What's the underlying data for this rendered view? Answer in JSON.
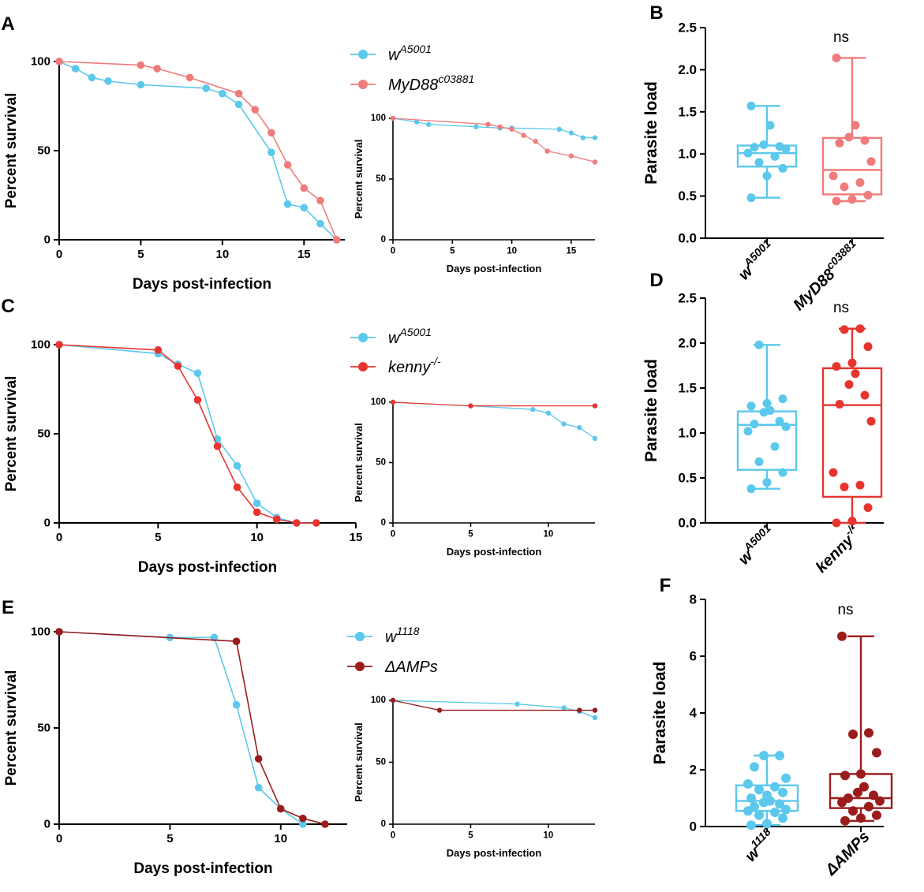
{
  "colors": {
    "light_blue": "#5bc8ec",
    "salmon": "#f07b7b",
    "red": "#e8342f",
    "dark_red": "#9b1c1c",
    "axis": "#000000"
  },
  "panel_labels": [
    "A",
    "B",
    "C",
    "D",
    "E",
    "F"
  ],
  "chart_data": [
    {
      "id": "A-main",
      "type": "line",
      "xlabel": "Days post-infection",
      "ylabel": "Percent survival",
      "xlim": [
        0,
        17.5
      ],
      "ylim": [
        0,
        100
      ],
      "xticks": [
        0,
        5,
        10,
        15
      ],
      "yticks": [
        0,
        50,
        100
      ],
      "series": [
        {
          "name": "w",
          "sup": "A5001",
          "color": "#5bc8ec",
          "x": [
            0,
            1,
            2,
            3,
            5,
            9,
            10,
            11,
            13,
            14,
            15,
            16,
            17
          ],
          "y": [
            100,
            96,
            91,
            89,
            87,
            85,
            82,
            76,
            49,
            20,
            18,
            9,
            0
          ]
        },
        {
          "name": "MyD88",
          "sup": "c03881",
          "color": "#f07b7b",
          "x": [
            0,
            5,
            6,
            8,
            11,
            12,
            13,
            14,
            15,
            16,
            17
          ],
          "y": [
            100,
            98,
            96,
            91,
            82,
            73,
            60,
            42,
            29,
            22,
            0
          ]
        }
      ]
    },
    {
      "id": "A-inset",
      "type": "line",
      "xlabel": "Days post-infection",
      "ylabel": "Percent survival",
      "xlim": [
        0,
        17
      ],
      "ylim": [
        0,
        100
      ],
      "xticks": [
        0,
        5,
        10,
        15
      ],
      "yticks": [
        0,
        50,
        100
      ],
      "series": [
        {
          "name": "w",
          "color": "#5bc8ec",
          "x": [
            0,
            2,
            3,
            7,
            9,
            10,
            14,
            15,
            16,
            17
          ],
          "y": [
            100,
            97,
            95,
            93,
            92,
            92,
            91,
            88,
            84,
            84
          ]
        },
        {
          "name": "MyD88",
          "color": "#f07b7b",
          "x": [
            0,
            8,
            9,
            10,
            11,
            12,
            13,
            15,
            17
          ],
          "y": [
            100,
            95,
            93,
            91,
            86,
            81,
            73,
            69,
            64
          ]
        }
      ]
    },
    {
      "id": "B",
      "type": "box",
      "ylabel": "Parasite load",
      "ylim": [
        0,
        2.5
      ],
      "yticks": [
        0.0,
        0.5,
        1.0,
        1.5,
        2.0,
        2.5
      ],
      "annotation": "ns",
      "groups": [
        {
          "label": "w",
          "sup": "A5001",
          "color": "#5bc8ec",
          "min": 0.48,
          "q1": 0.85,
          "median": 1.01,
          "q3": 1.1,
          "max": 1.57,
          "points": [
            0.48,
            0.74,
            0.83,
            0.9,
            0.97,
            1.01,
            1.06,
            1.08,
            1.09,
            1.11,
            1.34,
            1.57
          ]
        },
        {
          "label": "MyD88",
          "sup": "c03881",
          "color": "#f07b7b",
          "min": 0.44,
          "q1": 0.52,
          "median": 0.81,
          "q3": 1.19,
          "max": 2.14,
          "points": [
            0.44,
            0.46,
            0.51,
            0.61,
            0.66,
            0.74,
            0.91,
            1.13,
            1.16,
            1.2,
            1.34,
            2.14
          ]
        }
      ]
    },
    {
      "id": "C-main",
      "type": "line",
      "xlabel": "Days post-infection",
      "ylabel": "Percent survival",
      "xlim": [
        0,
        15
      ],
      "ylim": [
        0,
        100
      ],
      "xticks": [
        0,
        5,
        10,
        15
      ],
      "yticks": [
        0,
        50,
        100
      ],
      "series": [
        {
          "name": "w",
          "sup": "A5001",
          "color": "#5bc8ec",
          "x": [
            0,
            5,
            6,
            7,
            8,
            9,
            10,
            11,
            12,
            13
          ],
          "y": [
            100,
            95,
            89,
            84,
            47,
            32,
            11,
            3,
            0,
            0
          ]
        },
        {
          "name": "kenny",
          "sup": "-/-",
          "color": "#e8342f",
          "x": [
            0,
            5,
            6,
            7,
            8,
            9,
            10,
            11,
            12,
            13
          ],
          "y": [
            100,
            97,
            88,
            69,
            43,
            20,
            6,
            2,
            0,
            0
          ]
        }
      ]
    },
    {
      "id": "C-inset",
      "type": "line",
      "xlabel": "Days post-infection",
      "ylabel": "Percent survival",
      "xlim": [
        0,
        13
      ],
      "ylim": [
        0,
        100
      ],
      "xticks": [
        0,
        5,
        10
      ],
      "yticks": [
        0,
        50,
        100
      ],
      "series": [
        {
          "name": "w",
          "color": "#5bc8ec",
          "x": [
            0,
            5,
            9,
            10,
            11,
            12,
            13
          ],
          "y": [
            100,
            97,
            94,
            91,
            82,
            79,
            70
          ]
        },
        {
          "name": "kenny",
          "color": "#e8342f",
          "x": [
            0,
            5,
            13
          ],
          "y": [
            100,
            97,
            97
          ]
        }
      ]
    },
    {
      "id": "D",
      "type": "box",
      "ylabel": "Parasite load",
      "ylim": [
        0,
        2.5
      ],
      "yticks": [
        0.0,
        0.5,
        1.0,
        1.5,
        2.0,
        2.5
      ],
      "annotation": "ns",
      "groups": [
        {
          "label": "w",
          "sup": "A5001",
          "color": "#5bc8ec",
          "min": 0.38,
          "q1": 0.59,
          "median": 1.09,
          "q3": 1.24,
          "max": 1.98,
          "points": [
            0.38,
            0.45,
            0.56,
            0.68,
            0.85,
            1.02,
            1.07,
            1.1,
            1.13,
            1.23,
            1.25,
            1.3,
            1.33,
            1.38,
            1.98
          ]
        },
        {
          "label": "kenny",
          "sup": "-/-",
          "color": "#e8342f",
          "min": 0.0,
          "q1": 0.29,
          "median": 1.31,
          "q3": 1.72,
          "max": 2.16,
          "points": [
            0.0,
            0.02,
            0.17,
            0.4,
            0.42,
            0.56,
            1.13,
            1.32,
            1.42,
            1.54,
            1.66,
            1.74,
            1.78,
            1.96,
            2.15,
            2.16
          ]
        }
      ]
    },
    {
      "id": "E-main",
      "type": "line",
      "xlabel": "Days post-infection",
      "ylabel": "Percent survival",
      "xlim": [
        0,
        13
      ],
      "ylim": [
        0,
        100
      ],
      "xticks": [
        0,
        5,
        10
      ],
      "yticks": [
        0,
        50,
        100
      ],
      "series": [
        {
          "name": "w",
          "sup": "1118",
          "color": "#5bc8ec",
          "x": [
            0,
            5,
            7,
            8,
            9,
            10,
            11
          ],
          "y": [
            100,
            97,
            97,
            62,
            19,
            8,
            0
          ]
        },
        {
          "name": "ΔAMPs",
          "sup": "",
          "color": "#9b1c1c",
          "x": [
            0,
            8,
            9,
            10,
            11,
            12
          ],
          "y": [
            100,
            95,
            34,
            8,
            3,
            0
          ]
        }
      ]
    },
    {
      "id": "E-inset",
      "type": "line",
      "xlabel": "Days post-infection",
      "ylabel": "Percent survival",
      "xlim": [
        0,
        13
      ],
      "ylim": [
        0,
        100
      ],
      "xticks": [
        0,
        5,
        10
      ],
      "yticks": [
        0,
        50,
        100
      ],
      "series": [
        {
          "name": "w",
          "color": "#5bc8ec",
          "x": [
            0,
            8,
            11,
            12,
            13
          ],
          "y": [
            100,
            97,
            94,
            91,
            86
          ]
        },
        {
          "name": "ΔAMPs",
          "color": "#9b1c1c",
          "x": [
            0,
            3,
            12,
            13
          ],
          "y": [
            100,
            92,
            92,
            92
          ]
        }
      ]
    },
    {
      "id": "F",
      "type": "box",
      "ylabel": "Parasite load",
      "ylim": [
        0,
        8
      ],
      "yticks": [
        0,
        2,
        4,
        6,
        8
      ],
      "annotation": "ns",
      "groups": [
        {
          "label": "w",
          "sup": "1118",
          "color": "#5bc8ec",
          "min": 0.05,
          "q1": 0.55,
          "median": 0.9,
          "q3": 1.45,
          "max": 2.5,
          "points": [
            0.05,
            0.1,
            0.3,
            0.4,
            0.5,
            0.55,
            0.6,
            0.7,
            0.8,
            0.85,
            0.9,
            1.0,
            1.1,
            1.2,
            1.3,
            1.4,
            1.5,
            1.7,
            2.1,
            2.5,
            2.5
          ]
        },
        {
          "label": "ΔAMPs",
          "sup": "",
          "color": "#9b1c1c",
          "min": 0.2,
          "q1": 0.65,
          "median": 1.0,
          "q3": 1.85,
          "max": 6.7,
          "points": [
            0.2,
            0.3,
            0.4,
            0.55,
            0.7,
            0.85,
            0.9,
            1.0,
            1.1,
            1.2,
            1.4,
            1.8,
            1.85,
            2.6,
            3.25,
            3.3,
            6.7
          ]
        }
      ]
    }
  ]
}
